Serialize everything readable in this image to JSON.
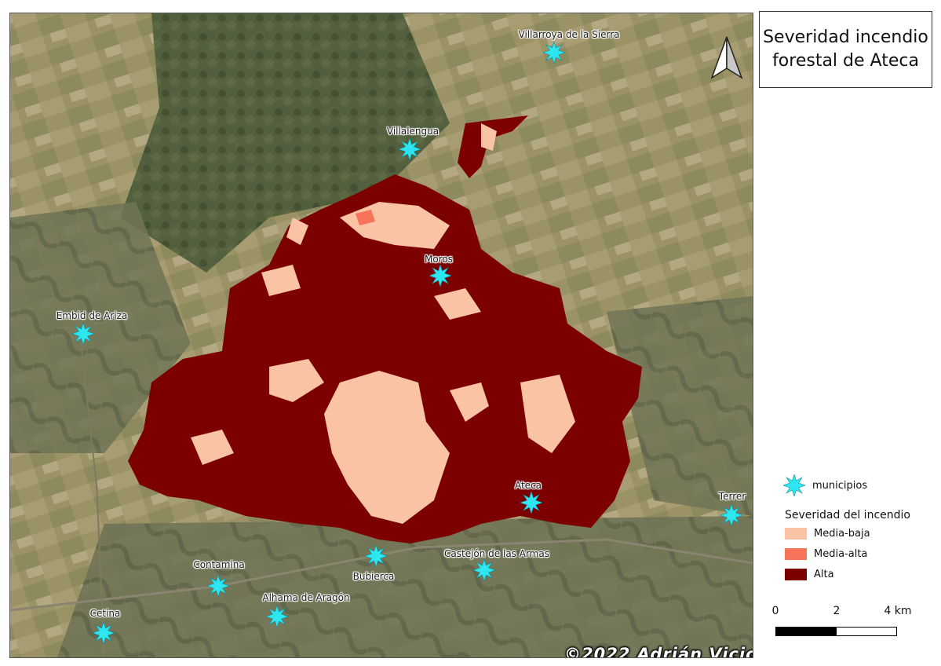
{
  "title": {
    "line1": "Severidad incendio",
    "line2": "forestal de Ateca"
  },
  "copyright": "©2022 Adrián Vicioso",
  "north_arrow_icon": "north-arrow-icon",
  "colors": {
    "media_baja": "#f9c3a4",
    "media_alta": "#f7735a",
    "alta": "#7c0000",
    "municipio_marker": "#2ee6f0"
  },
  "towns": [
    {
      "id": "villarroya",
      "name": "Villarroya de la Sierra"
    },
    {
      "id": "villalengua",
      "name": "Villalengua"
    },
    {
      "id": "moros",
      "name": "Moros"
    },
    {
      "id": "embid",
      "name": "Embid de Ariza"
    },
    {
      "id": "ateca",
      "name": "Ateca"
    },
    {
      "id": "terrer",
      "name": "Terrer"
    },
    {
      "id": "bubierca",
      "name": "Bubierca"
    },
    {
      "id": "castejon",
      "name": "Castejón de las Armas"
    },
    {
      "id": "contamina",
      "name": "Contamina"
    },
    {
      "id": "alhama",
      "name": "Alhama de Aragón"
    },
    {
      "id": "cetina",
      "name": "Cetina"
    }
  ],
  "legend": {
    "municipios_label": "municipios",
    "heading": "Severidad del incendio",
    "classes": [
      {
        "label": "Media-baja"
      },
      {
        "label": "Media-alta"
      },
      {
        "label": "Alta"
      }
    ]
  },
  "scale_bar": {
    "labels": [
      "0",
      "2",
      "4 km"
    ]
  }
}
